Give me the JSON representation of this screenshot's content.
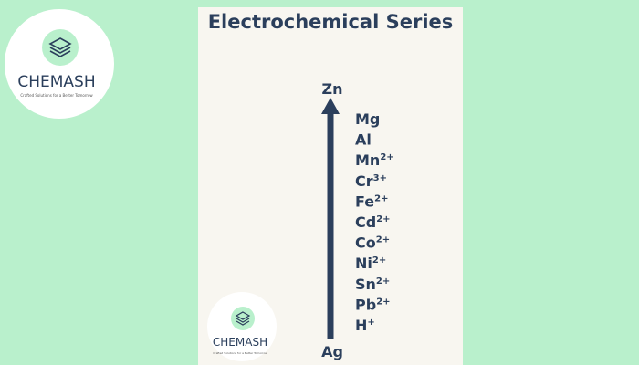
{
  "title": "Electrochemical Series",
  "logo": {
    "name": "CHEMASH",
    "tagline": "Crafted Solutions for a Better Tomorrow"
  },
  "series": {
    "top": "Zn",
    "bottom": "Ag",
    "items": [
      {
        "symbol": "Mg"
      },
      {
        "symbol": "Al"
      },
      {
        "symbol": "Mn",
        "charge": "2+"
      },
      {
        "symbol": "Cr",
        "charge": "3+"
      },
      {
        "symbol": "Fe",
        "charge": "2+"
      },
      {
        "symbol": "Cd",
        "charge": "2+"
      },
      {
        "symbol": "Co",
        "charge": "2+"
      },
      {
        "symbol": "Ni",
        "charge": "2+"
      },
      {
        "symbol": "Sn",
        "charge": "2+"
      },
      {
        "symbol": "Pb",
        "charge": "2+"
      },
      {
        "symbol": "H",
        "charge": "+"
      }
    ]
  }
}
